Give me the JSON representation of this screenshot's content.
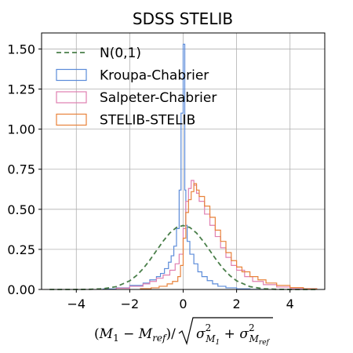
{
  "chart_data": {
    "type": "step-histogram",
    "title": "SDSS STELIB",
    "xlabel": {
      "lead": "(",
      "m1": "M",
      "m1_sub": "1",
      "minus": " − ",
      "mref": "M",
      "mref_sub": "ref",
      "close": ")/",
      "sigma1": "σ",
      "sigma1_sup": "2",
      "sigma1_sub": "M",
      "sigma1_subsub": "1",
      "plus": " + ",
      "sigma2": "σ",
      "sigma2_sup": "2",
      "sigma2_sub": "M",
      "sigma2_subsub": "ref"
    },
    "ylabel": "",
    "xlim": [
      -5.3,
      5.3
    ],
    "ylim": [
      0,
      1.6
    ],
    "xticks": [
      -4,
      -2,
      0,
      2,
      4
    ],
    "xtick_labels": [
      "−4",
      "−2",
      "0",
      "2",
      "4"
    ],
    "yticks": [
      0.0,
      0.25,
      0.5,
      0.75,
      1.0,
      1.25,
      1.5
    ],
    "ytick_labels": [
      "0.00",
      "0.25",
      "0.50",
      "0.75",
      "1.00",
      "1.25",
      "1.50"
    ],
    "grid": true,
    "legend_position": "top-left",
    "series": [
      {
        "name": "N(0,1)",
        "style": "dashed-line",
        "color": "#4a7f4a",
        "x": [
          -5.0,
          -4.5,
          -4.0,
          -3.5,
          -3.0,
          -2.5,
          -2.0,
          -1.75,
          -1.5,
          -1.25,
          -1.0,
          -0.75,
          -0.5,
          -0.25,
          0.0,
          0.25,
          0.5,
          0.75,
          1.0,
          1.25,
          1.5,
          1.75,
          2.0,
          2.5,
          3.0,
          3.5,
          4.0,
          4.5,
          5.0
        ],
        "values": [
          0.0,
          0.0,
          0.0001,
          0.0009,
          0.0044,
          0.0175,
          0.054,
          0.0863,
          0.1295,
          0.1826,
          0.242,
          0.3011,
          0.3521,
          0.3867,
          0.3989,
          0.3867,
          0.3521,
          0.3011,
          0.242,
          0.1826,
          0.1295,
          0.0863,
          0.054,
          0.0175,
          0.0044,
          0.0009,
          0.0001,
          0.0,
          0.0
        ]
      },
      {
        "name": "Kroupa-Chabrier",
        "style": "step",
        "color": "#5b8bd9",
        "bin_edges": [
          -3.0,
          -2.5,
          -2.0,
          -1.5,
          -1.25,
          -1.0,
          -0.85,
          -0.7,
          -0.55,
          -0.45,
          -0.35,
          -0.25,
          -0.15,
          -0.08,
          0.0,
          0.06,
          0.1,
          0.15,
          0.25,
          0.4,
          0.55,
          0.7,
          0.9,
          1.1,
          1.3,
          1.6,
          2.0,
          2.5,
          3.0
        ],
        "values": [
          0.003,
          0.01,
          0.025,
          0.04,
          0.06,
          0.08,
          0.1,
          0.13,
          0.17,
          0.21,
          0.27,
          0.38,
          0.62,
          1.1,
          1.53,
          0.62,
          0.4,
          0.3,
          0.22,
          0.16,
          0.11,
          0.08,
          0.055,
          0.035,
          0.02,
          0.01,
          0.004,
          0.001
        ]
      },
      {
        "name": "Salpeter-Chabrier",
        "style": "step",
        "color": "#e07fb0",
        "bin_edges": [
          -2.5,
          -2.0,
          -1.5,
          -1.25,
          -1.0,
          -0.75,
          -0.5,
          -0.3,
          -0.15,
          0.0,
          0.1,
          0.2,
          0.3,
          0.4,
          0.5,
          0.6,
          0.8,
          1.0,
          1.2,
          1.4,
          1.6,
          1.8,
          2.0,
          2.3,
          2.6,
          3.0,
          3.5,
          4.0,
          5.0
        ],
        "values": [
          0.008,
          0.02,
          0.035,
          0.05,
          0.07,
          0.09,
          0.12,
          0.16,
          0.22,
          0.38,
          0.55,
          0.63,
          0.68,
          0.65,
          0.6,
          0.55,
          0.47,
          0.4,
          0.33,
          0.26,
          0.2,
          0.15,
          0.12,
          0.08,
          0.05,
          0.03,
          0.015,
          0.005
        ]
      },
      {
        "name": "STELIB-STELIB",
        "style": "step",
        "color": "#e8823a",
        "bin_edges": [
          -1.6,
          -1.2,
          -0.9,
          -0.6,
          -0.4,
          -0.2,
          -0.1,
          0.0,
          0.1,
          0.2,
          0.3,
          0.4,
          0.5,
          0.6,
          0.8,
          1.0,
          1.2,
          1.4,
          1.6,
          1.8,
          2.0,
          2.2,
          2.5,
          2.8,
          3.1,
          3.5,
          4.0,
          4.5,
          5.0
        ],
        "values": [
          0.005,
          0.01,
          0.02,
          0.035,
          0.05,
          0.08,
          0.15,
          0.32,
          0.48,
          0.56,
          0.61,
          0.66,
          0.62,
          0.58,
          0.52,
          0.45,
          0.37,
          0.3,
          0.23,
          0.18,
          0.14,
          0.11,
          0.08,
          0.06,
          0.04,
          0.025,
          0.012,
          0.004
        ]
      }
    ]
  }
}
